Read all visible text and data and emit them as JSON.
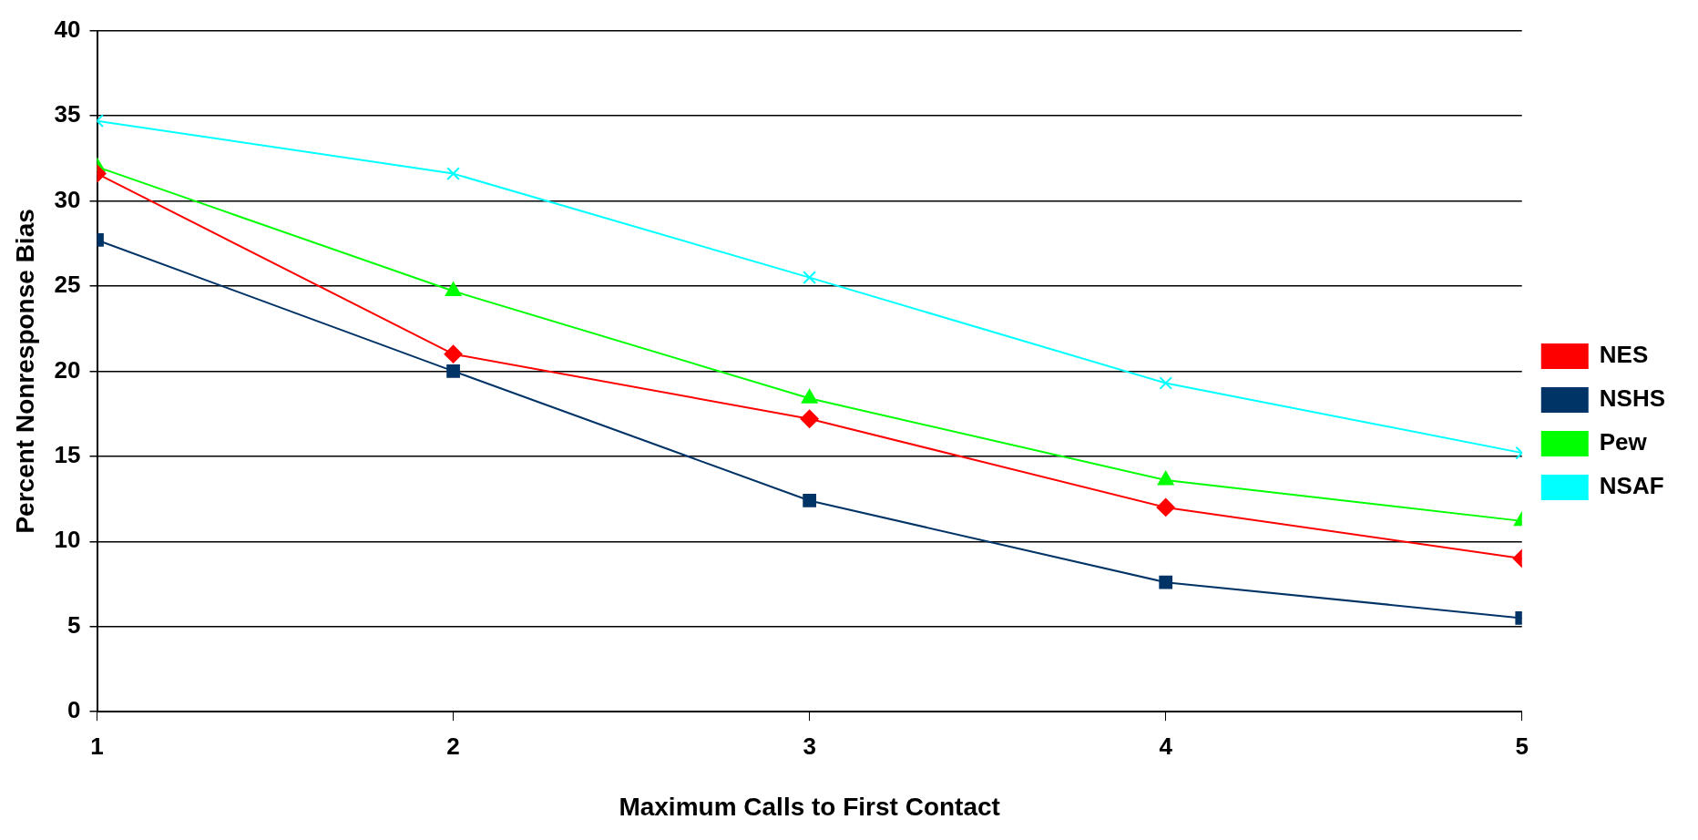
{
  "chart_data": {
    "type": "line",
    "xlabel": "Maximum Calls to First Contact",
    "ylabel": "Percent Nonresponse Bias",
    "x": [
      1,
      2,
      3,
      4,
      5
    ],
    "xlim": [
      1,
      5
    ],
    "xticks": [
      1,
      2,
      3,
      4,
      5
    ],
    "ylim": [
      0,
      40
    ],
    "yticks": [
      0,
      5,
      10,
      15,
      20,
      25,
      30,
      35,
      40
    ],
    "grid": "y",
    "legend": "right",
    "line_style": "solid",
    "series": [
      {
        "name": "NES",
        "color": "#ff0000",
        "marker": "diamond",
        "values": [
          31.6,
          21.0,
          17.2,
          12.0,
          9.0
        ]
      },
      {
        "name": "NSHS",
        "color": "#003366",
        "marker": "square",
        "values": [
          27.7,
          20.0,
          12.4,
          7.6,
          5.5
        ]
      },
      {
        "name": "Pew",
        "color": "#00ff00",
        "marker": "triangle",
        "values": [
          32.0,
          24.7,
          18.4,
          13.6,
          11.2
        ]
      },
      {
        "name": "NSAF",
        "color": "#00ffff",
        "marker": "cross",
        "values": [
          34.7,
          31.6,
          25.5,
          19.3,
          15.2
        ]
      }
    ]
  }
}
